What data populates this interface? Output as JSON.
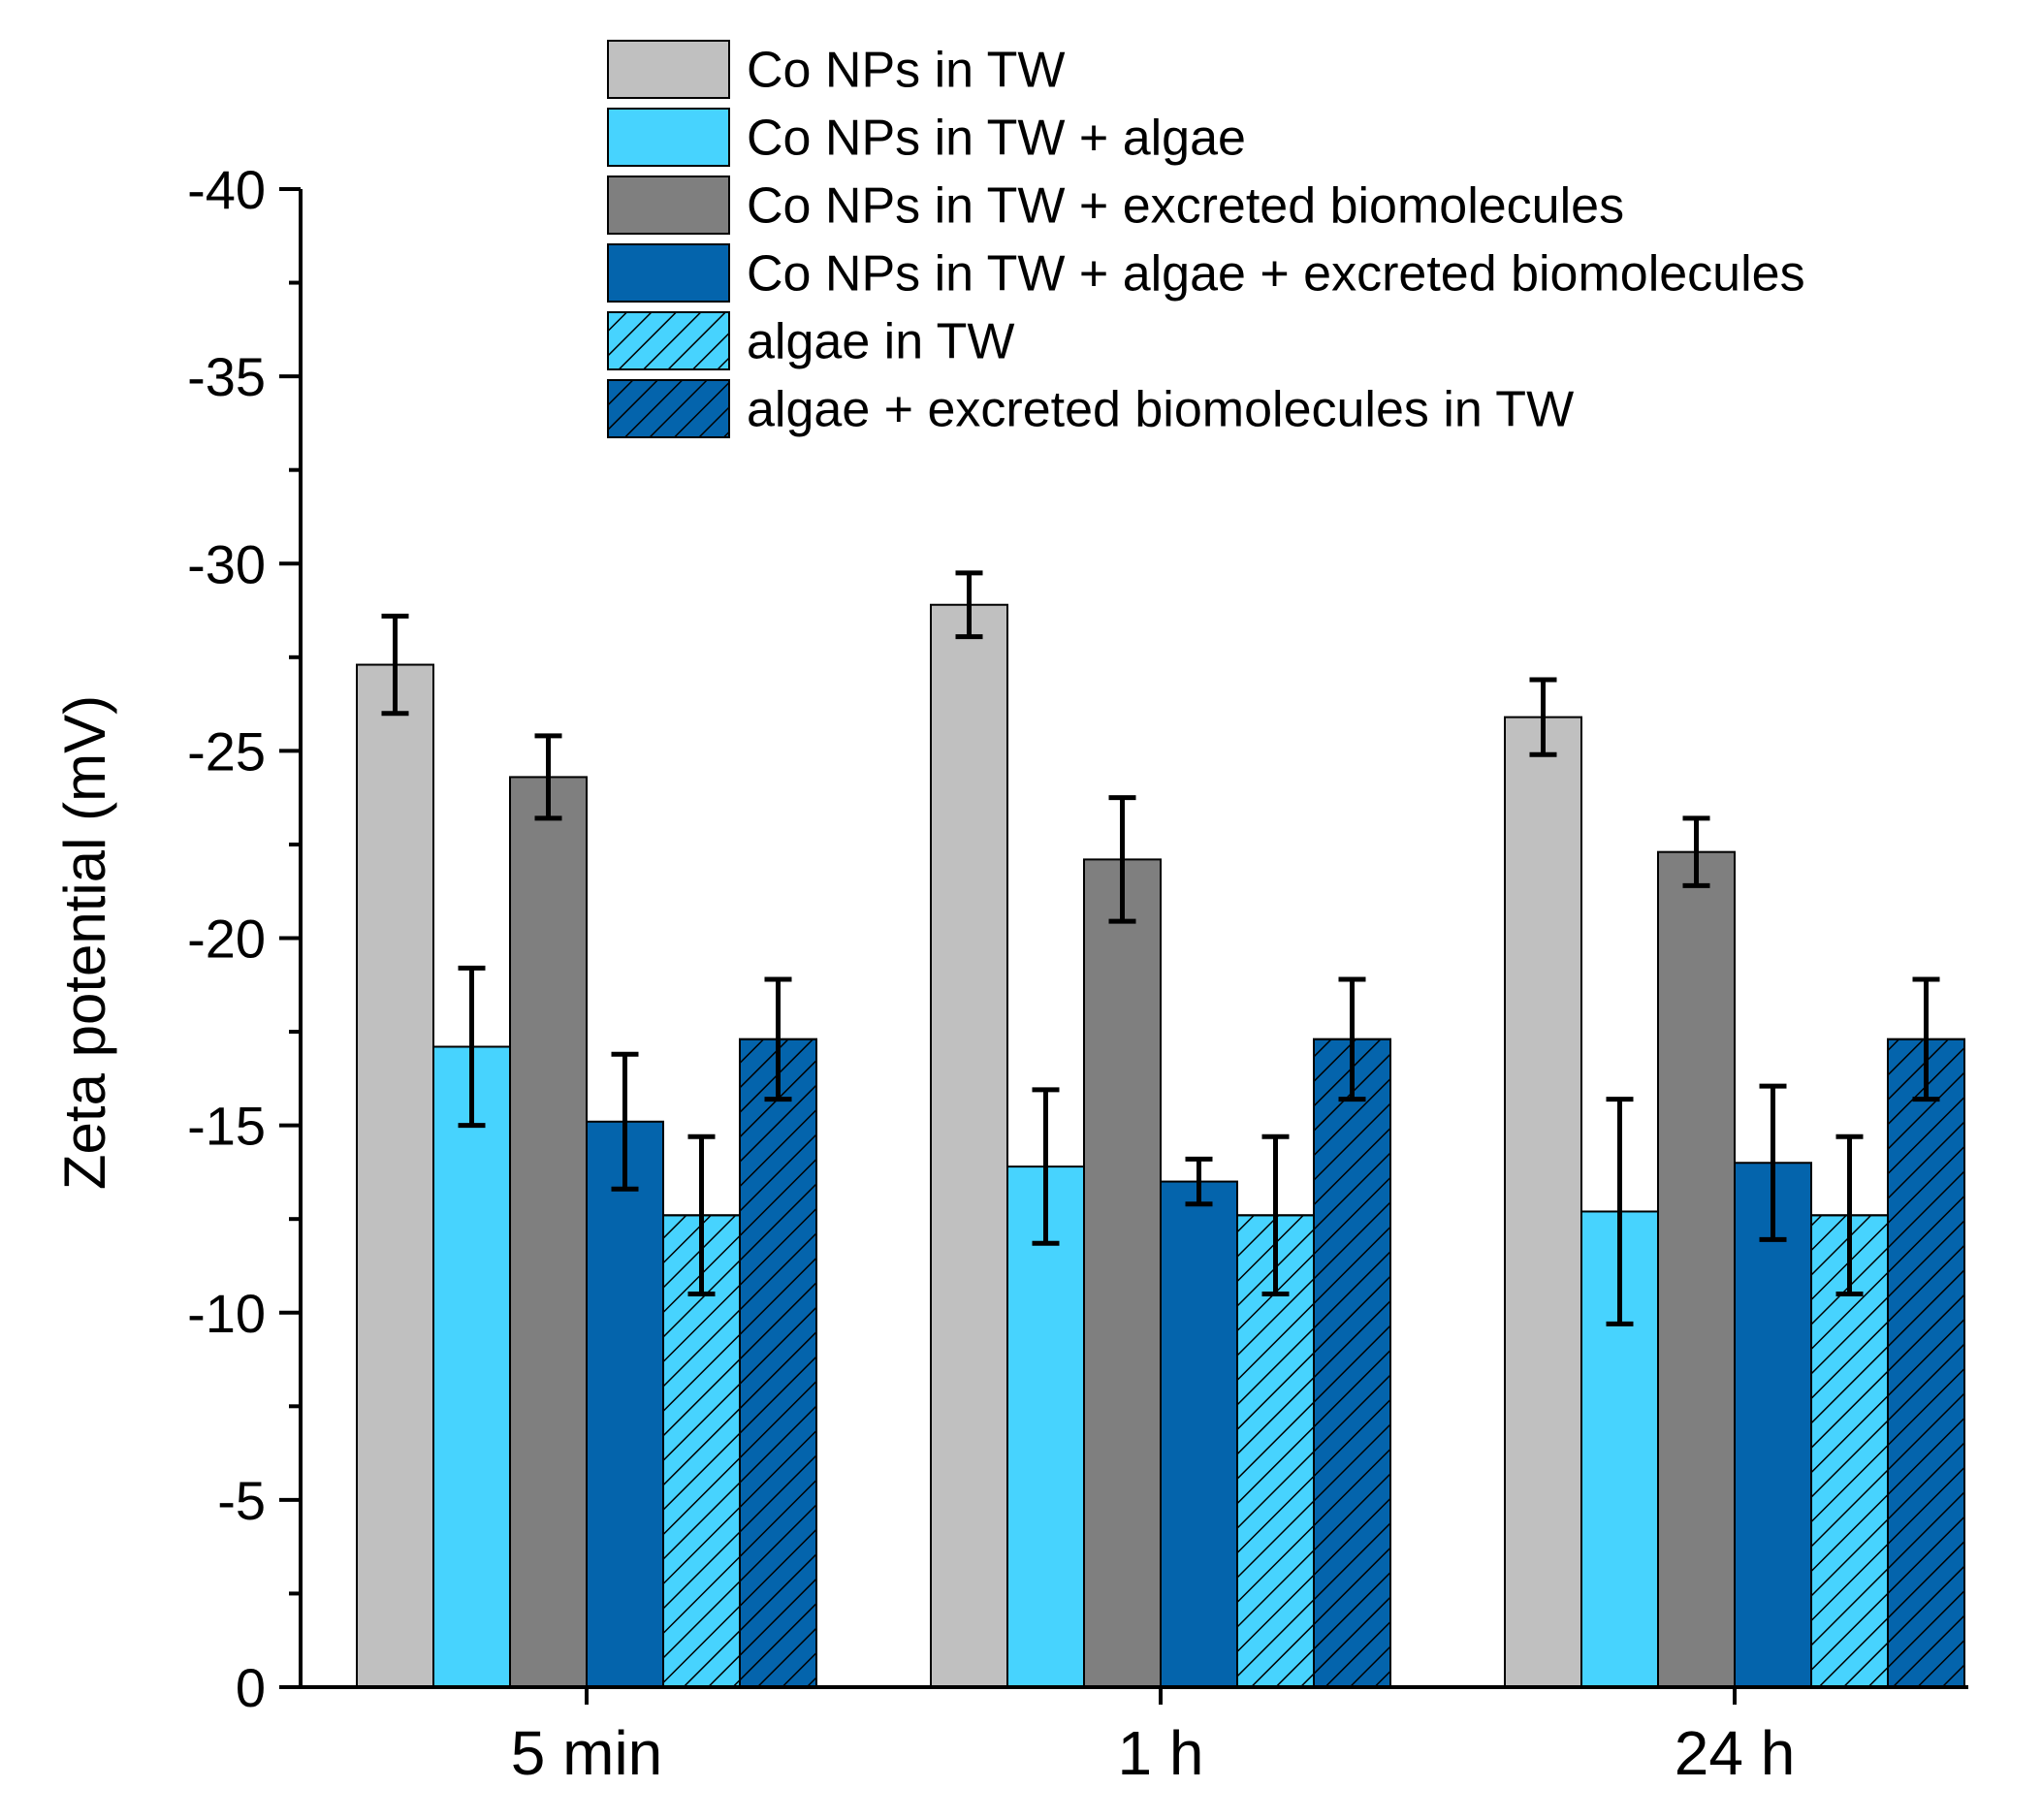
{
  "chart_data": {
    "type": "bar",
    "title": "",
    "xlabel": "",
    "ylabel": "Zeta potential (mV)",
    "ylim": [
      0,
      -40
    ],
    "yticks": [
      "0",
      "-5",
      "-10",
      "-15",
      "-20",
      "-25",
      "-30",
      "-35",
      "-40"
    ],
    "categories": [
      "5 min",
      "1 h",
      "24 h"
    ],
    "series": [
      {
        "name": "Co NPs in TW",
        "color": "#c0c0c0",
        "hatch": false,
        "values": [
          -27.3,
          -28.9,
          -25.9
        ],
        "errors": [
          1.3,
          0.85,
          1.0
        ]
      },
      {
        "name": "Co NPs in TW + algae",
        "color": "#47d3fe",
        "hatch": false,
        "values": [
          -17.1,
          -13.9,
          -12.7
        ],
        "errors": [
          2.1,
          2.05,
          3.0
        ]
      },
      {
        "name": "Co NPs in TW + excreted biomolecules",
        "color": "#7f7f7f",
        "hatch": false,
        "values": [
          -24.3,
          -22.1,
          -22.3
        ],
        "errors": [
          1.1,
          1.65,
          0.9
        ]
      },
      {
        "name": "Co NPs in TW + algae + excreted biomolecules",
        "color": "#0464ac",
        "hatch": false,
        "values": [
          -15.1,
          -13.5,
          -14.0
        ],
        "errors": [
          1.8,
          0.6,
          2.05
        ]
      },
      {
        "name": "algae in TW",
        "color": "#47d3fe",
        "hatch": true,
        "values": [
          -12.6,
          -12.6,
          -12.6
        ],
        "errors": [
          2.1,
          2.1,
          2.1
        ]
      },
      {
        "name": "algae + excreted biomolecules in TW",
        "color": "#0464ac",
        "hatch": true,
        "values": [
          -17.3,
          -17.3,
          -17.3
        ],
        "errors": [
          1.6,
          1.6,
          1.6
        ]
      }
    ]
  }
}
